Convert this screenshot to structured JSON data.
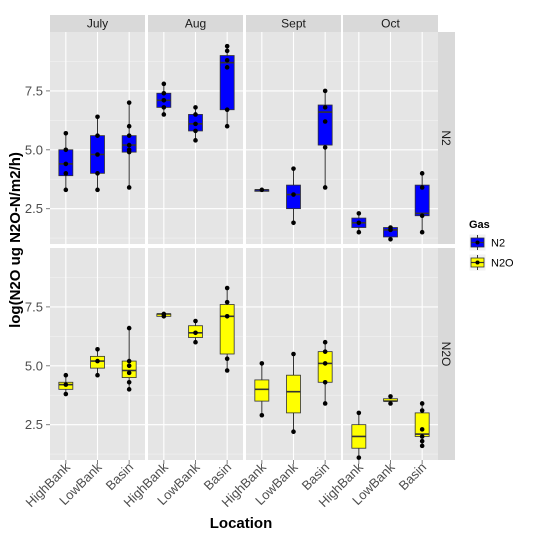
{
  "chart_data": {
    "type": "boxplot",
    "xlabel": "Location",
    "ylabel": "log(N2O ug N2O-N/m2/h)",
    "ylim": [
      1.0,
      10.0
    ],
    "yticks": [
      "2.5",
      "5.0",
      "7.5"
    ],
    "categories": [
      "HighBank",
      "LowBank",
      "Basin"
    ],
    "months": [
      "July",
      "Aug",
      "Sept",
      "Oct"
    ],
    "gases": [
      "N2",
      "N2O"
    ],
    "legend": {
      "title": "Gas",
      "position": "right",
      "items": [
        {
          "label": "N2",
          "color": "#0000FF"
        },
        {
          "label": "N2O",
          "color": "#FFFF00"
        }
      ]
    },
    "panels": [
      {
        "month": "July",
        "gas": "N2",
        "boxes": [
          {
            "category": "HighBank",
            "min": 3.3,
            "q1": 3.9,
            "median": 4.4,
            "q3": 5.0,
            "max": 5.7,
            "points": [
              3.3,
              4.0,
              4.4,
              5.0,
              5.7
            ]
          },
          {
            "category": "LowBank",
            "min": 3.3,
            "q1": 4.0,
            "median": 4.8,
            "q3": 5.6,
            "max": 6.4,
            "points": [
              3.3,
              4.0,
              4.8,
              5.6,
              6.4
            ]
          },
          {
            "category": "Basin",
            "min": 3.4,
            "q1": 4.9,
            "median": 5.2,
            "q3": 5.6,
            "max": 7.0,
            "points": [
              3.4,
              4.9,
              5.0,
              5.2,
              5.6,
              6.0,
              7.0
            ]
          }
        ]
      },
      {
        "month": "Aug",
        "gas": "N2",
        "boxes": [
          {
            "category": "HighBank",
            "min": 6.5,
            "q1": 6.8,
            "median": 7.1,
            "q3": 7.4,
            "max": 7.8,
            "points": [
              6.5,
              6.8,
              7.1,
              7.4,
              7.8
            ]
          },
          {
            "category": "LowBank",
            "min": 5.4,
            "q1": 5.8,
            "median": 6.1,
            "q3": 6.5,
            "max": 6.8,
            "points": [
              5.4,
              5.8,
              6.1,
              6.5,
              6.8
            ]
          },
          {
            "category": "Basin",
            "min": 6.0,
            "q1": 6.7,
            "median": 8.7,
            "q3": 9.0,
            "max": 9.4,
            "points": [
              6.0,
              6.7,
              8.5,
              8.8,
              9.2,
              9.4
            ]
          }
        ]
      },
      {
        "month": "Sept",
        "gas": "N2",
        "boxes": [
          {
            "category": "HighBank",
            "min": 3.3,
            "q1": 3.3,
            "median": 3.3,
            "q3": 3.3,
            "max": 3.3,
            "points": [
              3.3
            ]
          },
          {
            "category": "LowBank",
            "min": 1.9,
            "q1": 2.5,
            "median": 3.1,
            "q3": 3.5,
            "max": 4.2,
            "points": [
              1.9,
              3.1,
              4.2
            ]
          },
          {
            "category": "Basin",
            "min": 3.4,
            "q1": 5.2,
            "median": 6.6,
            "q3": 6.9,
            "max": 7.5,
            "points": [
              3.4,
              5.1,
              6.2,
              6.8,
              7.5
            ]
          }
        ]
      },
      {
        "month": "Oct",
        "gas": "N2",
        "boxes": [
          {
            "category": "HighBank",
            "min": 1.5,
            "q1": 1.7,
            "median": 1.9,
            "q3": 2.1,
            "max": 2.3,
            "points": [
              1.5,
              1.9,
              2.3
            ]
          },
          {
            "category": "LowBank",
            "min": 1.2,
            "q1": 1.3,
            "median": 1.6,
            "q3": 1.7,
            "max": 1.7,
            "points": [
              1.2,
              1.6,
              1.7
            ]
          },
          {
            "category": "Basin",
            "min": 1.5,
            "q1": 2.2,
            "median": 2.3,
            "q3": 3.5,
            "max": 4.0,
            "points": [
              1.5,
              2.2,
              3.4,
              4.0
            ]
          }
        ]
      },
      {
        "month": "July",
        "gas": "N2O",
        "boxes": [
          {
            "category": "HighBank",
            "min": 3.8,
            "q1": 4.0,
            "median": 4.2,
            "q3": 4.3,
            "max": 4.6,
            "points": [
              3.8,
              4.2,
              4.6
            ]
          },
          {
            "category": "LowBank",
            "min": 4.6,
            "q1": 4.9,
            "median": 5.2,
            "q3": 5.4,
            "max": 5.7,
            "points": [
              4.6,
              5.2,
              5.7
            ]
          },
          {
            "category": "Basin",
            "min": 4.0,
            "q1": 4.5,
            "median": 4.8,
            "q3": 5.2,
            "max": 6.6,
            "points": [
              4.0,
              4.3,
              4.7,
              5.0,
              5.2,
              6.6
            ]
          }
        ]
      },
      {
        "month": "Aug",
        "gas": "N2O",
        "boxes": [
          {
            "category": "HighBank",
            "min": 7.1,
            "q1": 7.1,
            "median": 7.2,
            "q3": 7.2,
            "max": 7.2,
            "points": [
              7.1,
              7.2
            ]
          },
          {
            "category": "LowBank",
            "min": 6.0,
            "q1": 6.2,
            "median": 6.4,
            "q3": 6.7,
            "max": 6.9,
            "points": [
              6.0,
              6.4,
              6.9
            ]
          },
          {
            "category": "Basin",
            "min": 4.8,
            "q1": 5.5,
            "median": 7.1,
            "q3": 7.6,
            "max": 8.3,
            "points": [
              4.8,
              5.3,
              7.1,
              7.7,
              8.3
            ]
          }
        ]
      },
      {
        "month": "Sept",
        "gas": "N2O",
        "boxes": [
          {
            "category": "HighBank",
            "min": 2.9,
            "q1": 3.5,
            "median": 4.0,
            "q3": 4.4,
            "max": 5.1,
            "points": [
              2.9,
              5.1
            ]
          },
          {
            "category": "LowBank",
            "min": 2.2,
            "q1": 3.0,
            "median": 3.9,
            "q3": 4.6,
            "max": 5.5,
            "points": [
              2.2,
              5.5
            ]
          },
          {
            "category": "Basin",
            "min": 3.4,
            "q1": 4.3,
            "median": 5.1,
            "q3": 5.6,
            "max": 6.0,
            "points": [
              3.4,
              4.3,
              5.1,
              5.6,
              6.0
            ]
          }
        ]
      },
      {
        "month": "Oct",
        "gas": "N2O",
        "boxes": [
          {
            "category": "HighBank",
            "min": 1.1,
            "q1": 1.5,
            "median": 2.0,
            "q3": 2.5,
            "max": 3.0,
            "points": [
              1.1,
              3.0
            ]
          },
          {
            "category": "LowBank",
            "min": 3.4,
            "q1": 3.5,
            "median": 3.5,
            "q3": 3.6,
            "max": 3.7,
            "points": [
              3.4,
              3.7
            ]
          },
          {
            "category": "Basin",
            "min": 1.6,
            "q1": 2.0,
            "median": 2.1,
            "q3": 3.0,
            "max": 3.4,
            "points": [
              1.6,
              1.8,
              2.0,
              2.3,
              3.1,
              3.4
            ]
          }
        ]
      }
    ],
    "grid": true
  }
}
